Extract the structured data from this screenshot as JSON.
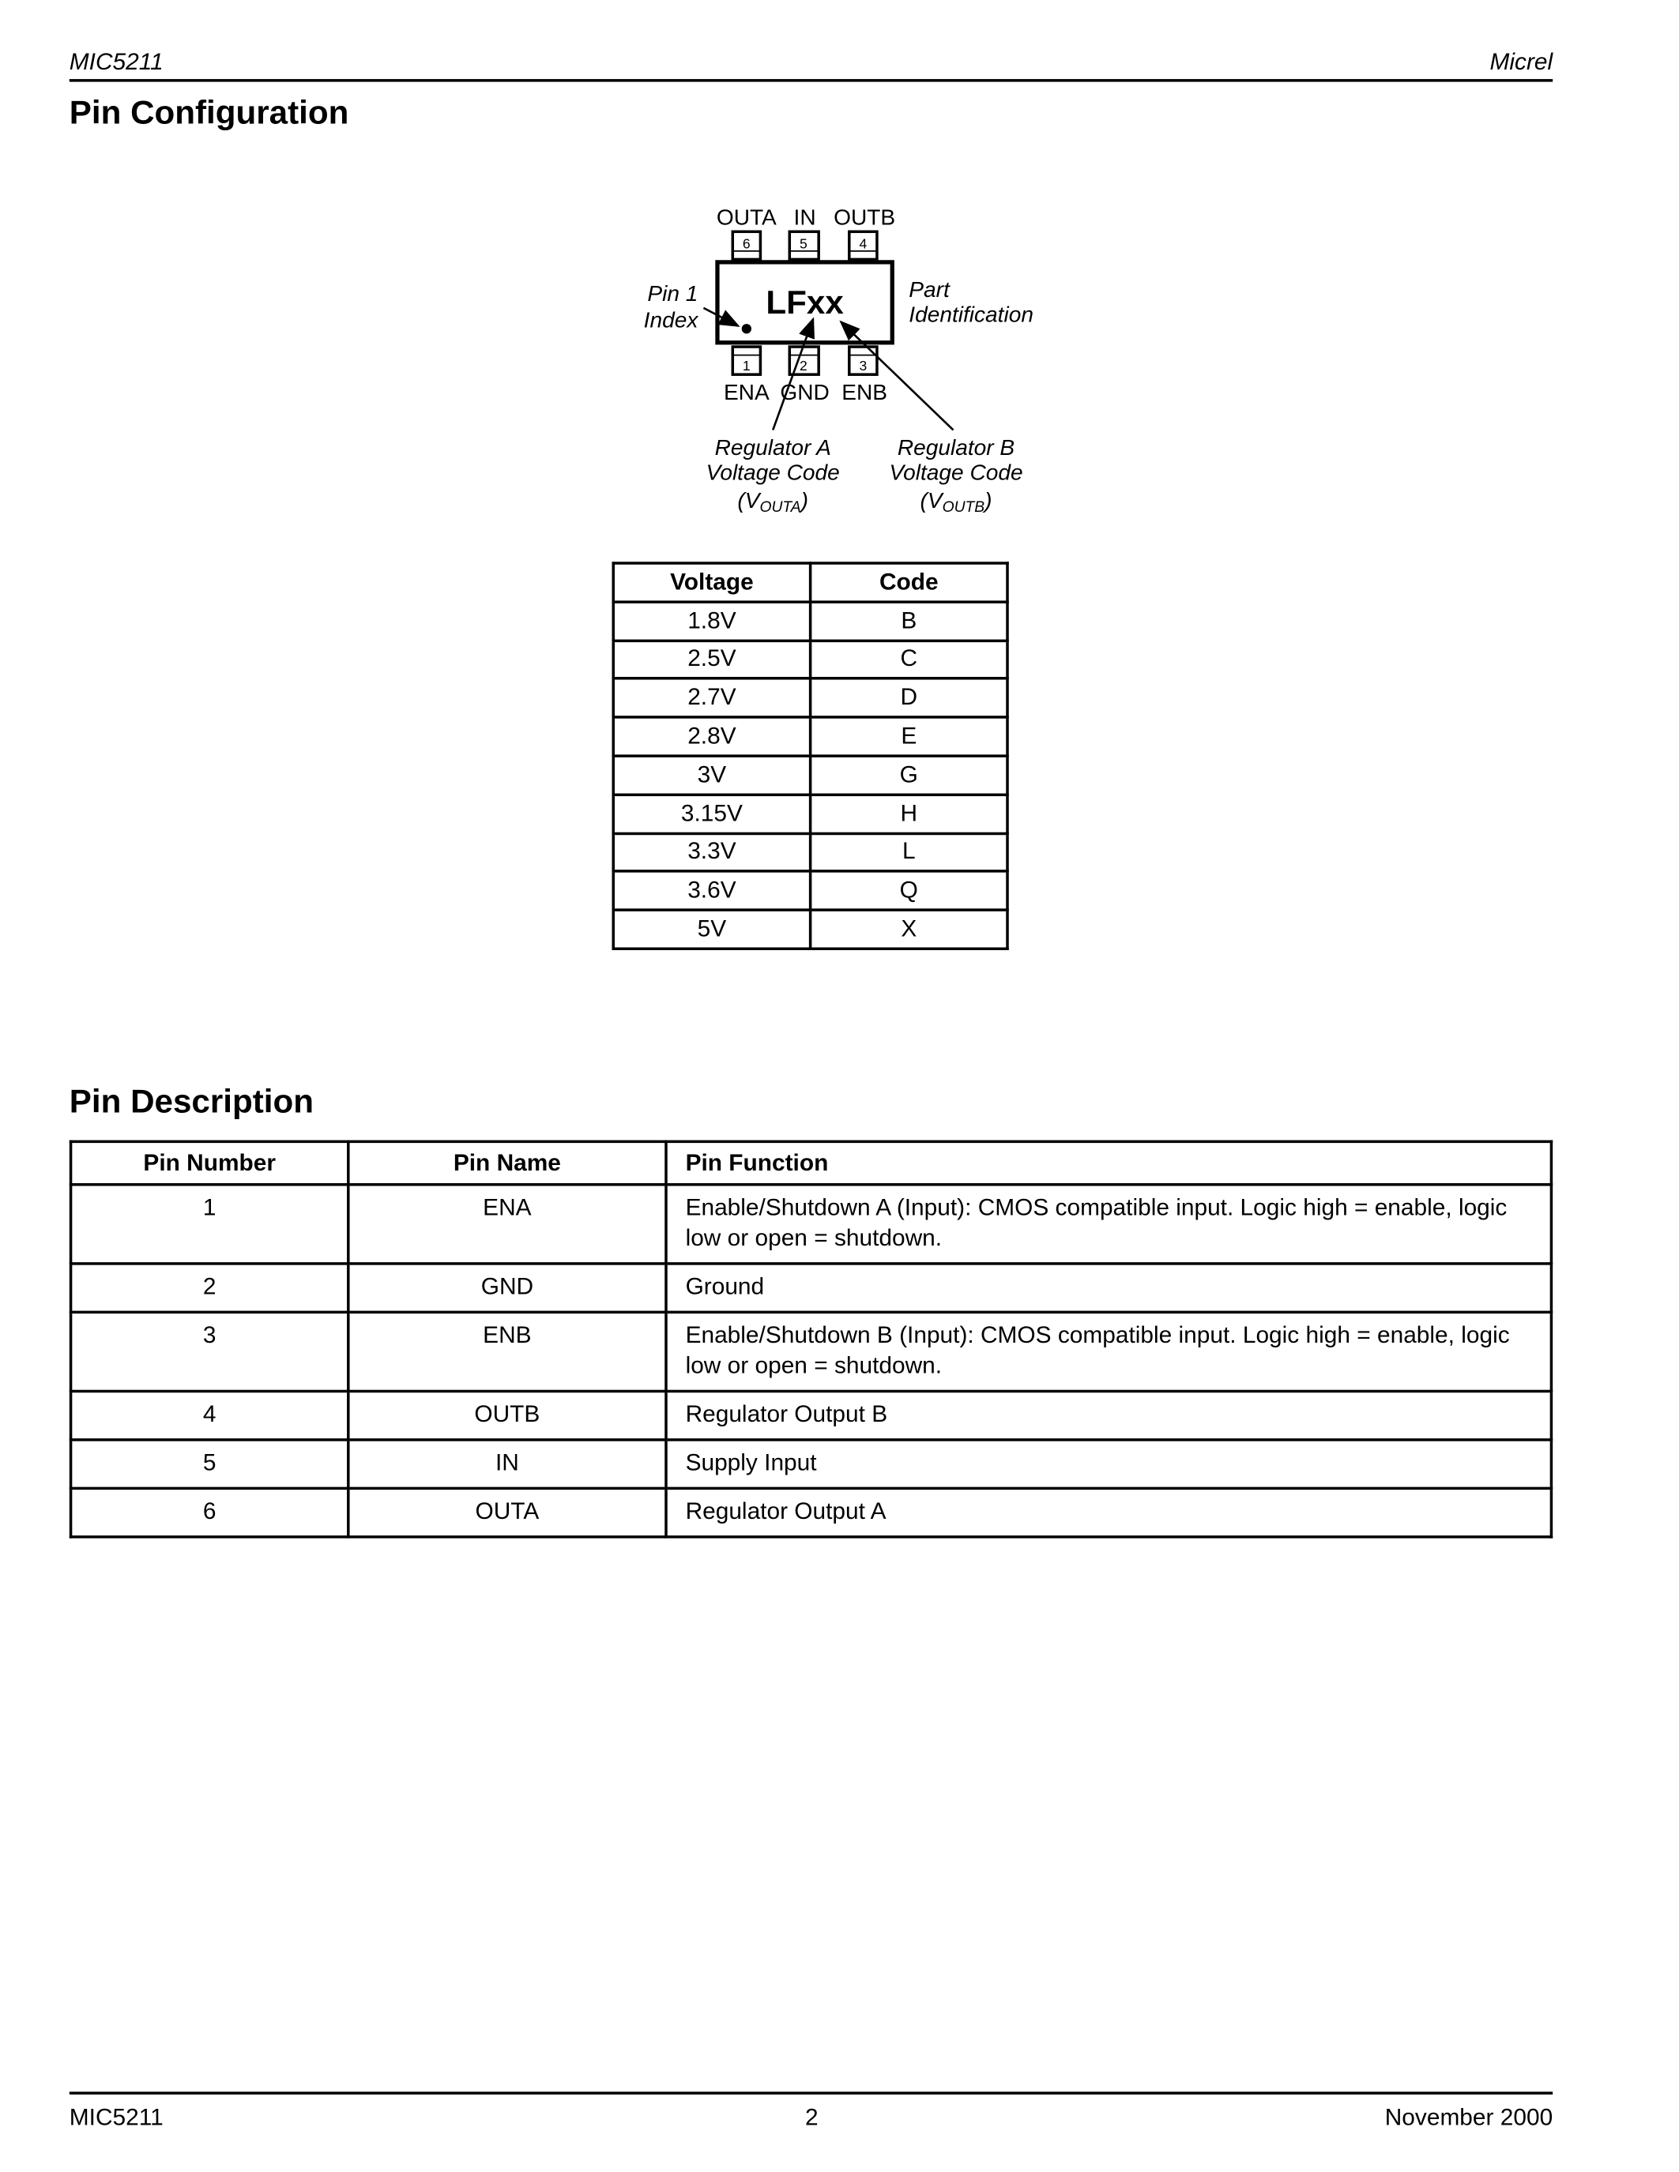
{
  "header": {
    "left": "MIC5211",
    "right": "Micrel"
  },
  "pin_configuration": {
    "title": "Pin Configuration",
    "diagram": {
      "marking": "LFxx",
      "top_pins": [
        {
          "num": "6",
          "name": "OUTA"
        },
        {
          "num": "5",
          "name": "IN"
        },
        {
          "num": "4",
          "name": "OUTB"
        }
      ],
      "bottom_pins": [
        {
          "num": "1",
          "name": "ENA"
        },
        {
          "num": "2",
          "name": "GND"
        },
        {
          "num": "3",
          "name": "ENB"
        }
      ],
      "pin1_label": [
        "Pin 1",
        "Index"
      ],
      "part_label": [
        "Part",
        "Identification"
      ],
      "reg_a_label": [
        "Regulator A",
        "Voltage Code"
      ],
      "reg_a_sym": {
        "v": "V",
        "sub": "OUTA"
      },
      "reg_b_label": [
        "Regulator B",
        "Voltage Code"
      ],
      "reg_b_sym": {
        "v": "V",
        "sub": "OUTB"
      }
    },
    "voltage_table": {
      "headers": [
        "Voltage",
        "Code"
      ],
      "rows": [
        [
          "1.8V",
          "B"
        ],
        [
          "2.5V",
          "C"
        ],
        [
          "2.7V",
          "D"
        ],
        [
          "2.8V",
          "E"
        ],
        [
          "3V",
          "G"
        ],
        [
          "3.15V",
          "H"
        ],
        [
          "3.3V",
          "L"
        ],
        [
          "3.6V",
          "Q"
        ],
        [
          "5V",
          "X"
        ]
      ]
    }
  },
  "pin_description": {
    "title": "Pin Description",
    "headers": [
      "Pin Number",
      "Pin Name",
      "Pin Function"
    ],
    "rows": [
      [
        "1",
        "ENA",
        "Enable/Shutdown A (Input):  CMOS compatible input. Logic high = enable, logic low or open = shutdown."
      ],
      [
        "2",
        "GND",
        "Ground"
      ],
      [
        "3",
        "ENB",
        "Enable/Shutdown B (Input):  CMOS compatible input. Logic high = enable, logic low or open = shutdown."
      ],
      [
        "4",
        "OUTB",
        "Regulator Output B"
      ],
      [
        "5",
        "IN",
        "Supply Input"
      ],
      [
        "6",
        "OUTA",
        "Regulator Output A"
      ]
    ]
  },
  "footer": {
    "left": "MIC5211",
    "center": "2",
    "right": "November 2000"
  }
}
